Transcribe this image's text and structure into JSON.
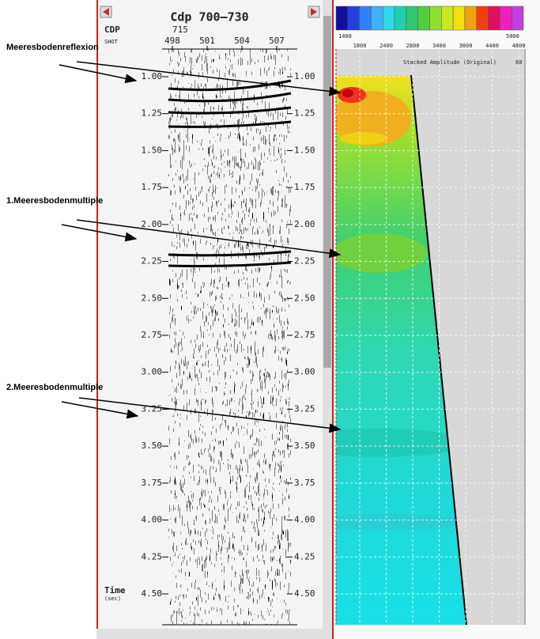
{
  "annotations": [
    "Meeresbodenreflexion",
    "1.Meeresbodenmultiple",
    "2.Meeresbodenmultiple"
  ],
  "seismic": {
    "title": "Cdp 700–730",
    "cdp_label": "CDP",
    "cdp_value": "715",
    "shot_label": "SHOT",
    "shots": [
      "498",
      "501",
      "504",
      "507"
    ],
    "time_ticks": [
      "1.00",
      "1.25",
      "1.50",
      "1.75",
      "2.00",
      "2.25",
      "2.50",
      "2.75",
      "3.00",
      "3.25",
      "3.50",
      "3.75",
      "4.00",
      "4.25",
      "4.50"
    ],
    "time_label": "Time",
    "time_unit": "(sec)"
  },
  "velocity": {
    "range_labels": [
      "1400",
      "5000"
    ],
    "ticks": [
      "1800",
      "2400",
      "2800",
      "3400",
      "3800",
      "4400",
      "4800"
    ],
    "caption": "Stacked Amplitude (Original)",
    "caption_value": "80"
  }
}
